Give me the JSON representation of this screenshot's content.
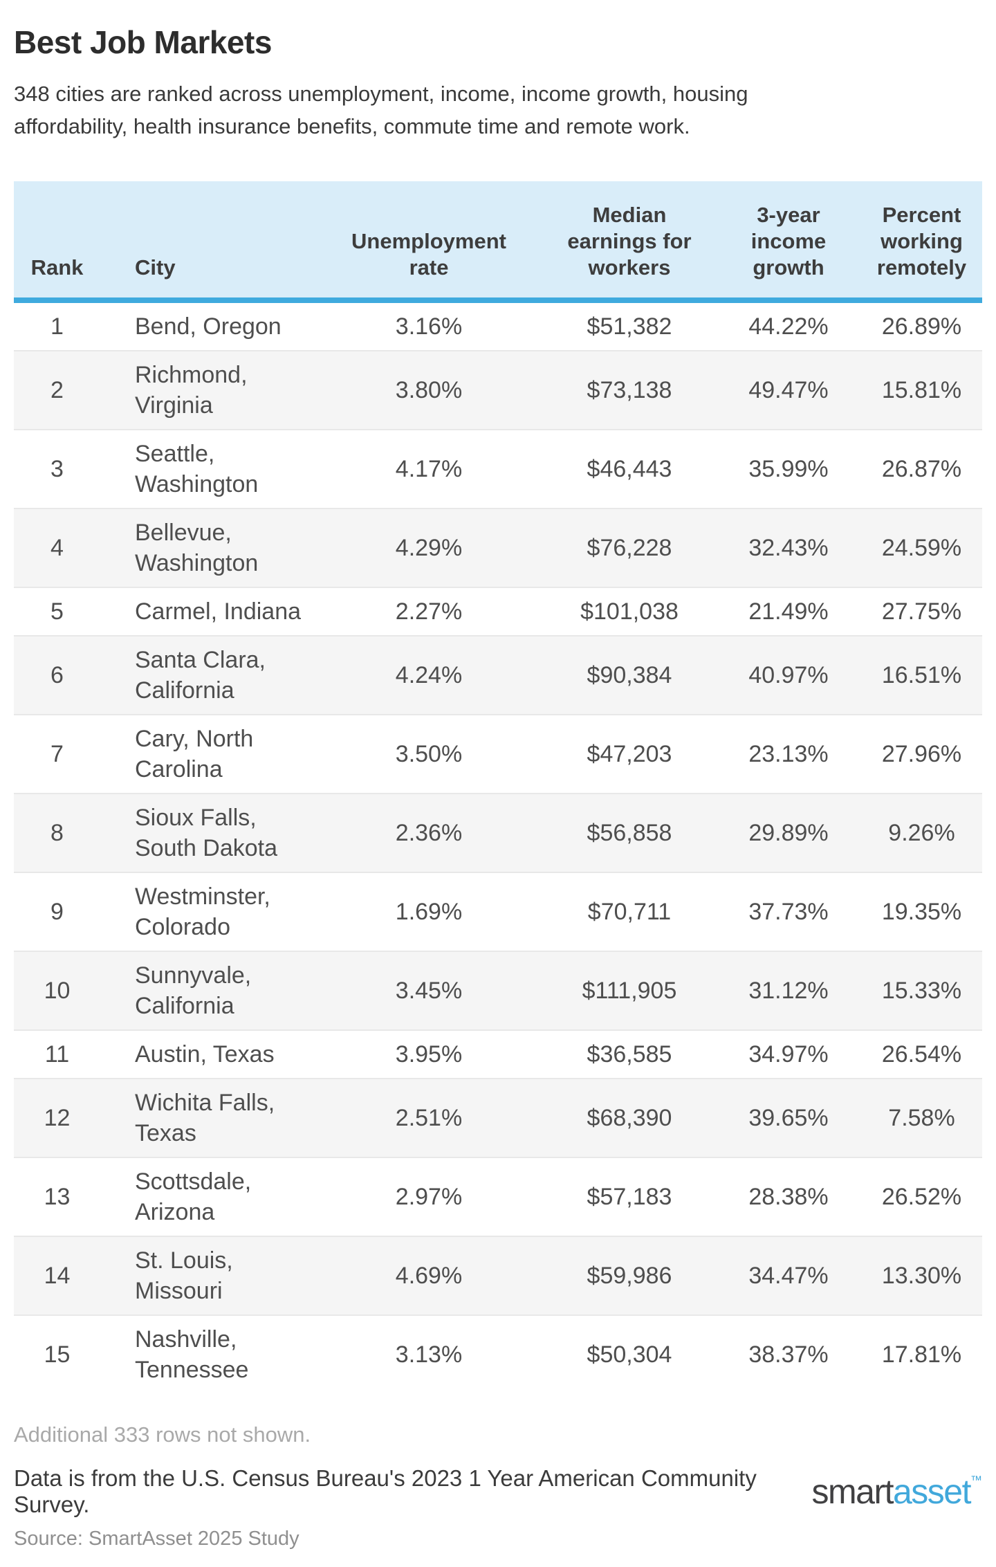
{
  "page": {
    "title": "Best Job Markets",
    "subtitle": "348 cities are ranked across unemployment, income, income growth, housing affordability, health insurance benefits, commute time and remote work.",
    "rows_note": "Additional 333 rows not shown.",
    "data_note": "Data is from the U.S. Census Bureau's 2023 1 Year American Community Survey.",
    "source_note": "Source: SmartAsset 2025 Study"
  },
  "logo": {
    "prefix": "smart",
    "suffix": "asset",
    "trademark": "™"
  },
  "colors": {
    "header_bg": "#d9edf9",
    "header_border": "#3faade",
    "zebra_row": "#f5f5f5",
    "logo_dark": "#414143",
    "logo_blue": "#41a8db"
  },
  "chart_data": {
    "type": "table",
    "title": "Best Job Markets",
    "columns": [
      {
        "key": "rank",
        "label": "Rank"
      },
      {
        "key": "city",
        "label": "City"
      },
      {
        "key": "unemployment",
        "label": "Unemployment rate"
      },
      {
        "key": "earnings",
        "label": "Median earnings for workers"
      },
      {
        "key": "growth",
        "label": "3-year income growth"
      },
      {
        "key": "remote",
        "label": "Percent working remotely"
      }
    ],
    "rows": [
      {
        "rank": "1",
        "city": "Bend, Oregon",
        "unemployment": "3.16%",
        "earnings": "$51,382",
        "growth": "44.22%",
        "remote": "26.89%"
      },
      {
        "rank": "2",
        "city": "Richmond, Virginia",
        "unemployment": "3.80%",
        "earnings": "$73,138",
        "growth": "49.47%",
        "remote": "15.81%"
      },
      {
        "rank": "3",
        "city": "Seattle, Washington",
        "unemployment": "4.17%",
        "earnings": "$46,443",
        "growth": "35.99%",
        "remote": "26.87%"
      },
      {
        "rank": "4",
        "city": "Bellevue, Washington",
        "unemployment": "4.29%",
        "earnings": "$76,228",
        "growth": "32.43%",
        "remote": "24.59%"
      },
      {
        "rank": "5",
        "city": "Carmel, Indiana",
        "unemployment": "2.27%",
        "earnings": "$101,038",
        "growth": "21.49%",
        "remote": "27.75%"
      },
      {
        "rank": "6",
        "city": "Santa Clara, California",
        "unemployment": "4.24%",
        "earnings": "$90,384",
        "growth": "40.97%",
        "remote": "16.51%"
      },
      {
        "rank": "7",
        "city": "Cary, North Carolina",
        "unemployment": "3.50%",
        "earnings": "$47,203",
        "growth": "23.13%",
        "remote": "27.96%"
      },
      {
        "rank": "8",
        "city": "Sioux Falls, South Dakota",
        "unemployment": "2.36%",
        "earnings": "$56,858",
        "growth": "29.89%",
        "remote": "9.26%"
      },
      {
        "rank": "9",
        "city": "Westminster, Colorado",
        "unemployment": "1.69%",
        "earnings": "$70,711",
        "growth": "37.73%",
        "remote": "19.35%"
      },
      {
        "rank": "10",
        "city": "Sunnyvale, California",
        "unemployment": "3.45%",
        "earnings": "$111,905",
        "growth": "31.12%",
        "remote": "15.33%"
      },
      {
        "rank": "11",
        "city": "Austin, Texas",
        "unemployment": "3.95%",
        "earnings": "$36,585",
        "growth": "34.97%",
        "remote": "26.54%"
      },
      {
        "rank": "12",
        "city": "Wichita Falls, Texas",
        "unemployment": "2.51%",
        "earnings": "$68,390",
        "growth": "39.65%",
        "remote": "7.58%"
      },
      {
        "rank": "13",
        "city": "Scottsdale, Arizona",
        "unemployment": "2.97%",
        "earnings": "$57,183",
        "growth": "28.38%",
        "remote": "26.52%"
      },
      {
        "rank": "14",
        "city": "St. Louis, Missouri",
        "unemployment": "4.69%",
        "earnings": "$59,986",
        "growth": "34.47%",
        "remote": "13.30%"
      },
      {
        "rank": "15",
        "city": "Nashville, Tennessee",
        "unemployment": "3.13%",
        "earnings": "$50,304",
        "growth": "38.37%",
        "remote": "17.81%"
      }
    ],
    "hidden_rows_note": "Additional 333 rows not shown."
  }
}
